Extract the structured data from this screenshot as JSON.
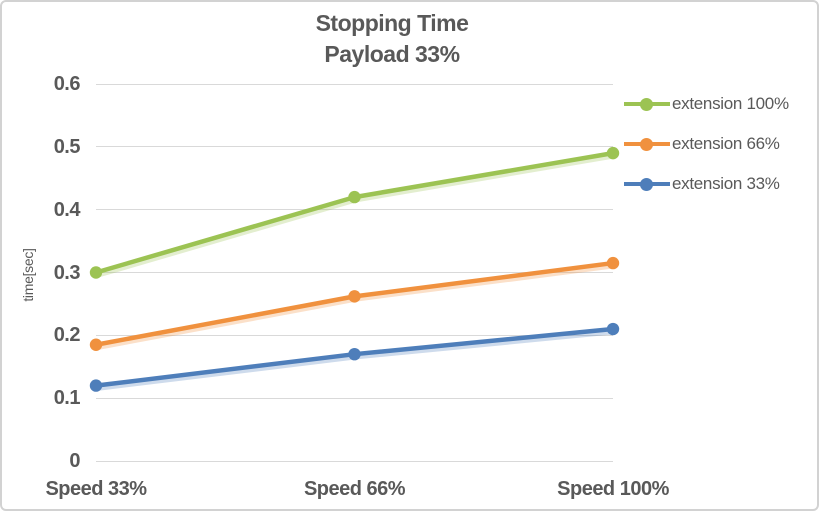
{
  "frame": {
    "background": "#ffffff",
    "border_color": "#d2d2d2",
    "text_color": "#595959",
    "grid_color": "#d9d9d9"
  },
  "chart_data": {
    "type": "line",
    "title": "Stopping Time",
    "subtitle": "Payload 33%",
    "xlabel": "",
    "ylabel": "time[sec]",
    "categories": [
      "Speed 33%",
      "Speed 66%",
      "Speed 100%"
    ],
    "series": [
      {
        "name": "extension 100%",
        "color": "#9cc353",
        "values": [
          0.3,
          0.42,
          0.49
        ]
      },
      {
        "name": "extension 66%",
        "color": "#f0913e",
        "values": [
          0.185,
          0.262,
          0.315
        ]
      },
      {
        "name": "extension 33%",
        "color": "#4e7eba",
        "values": [
          0.12,
          0.17,
          0.21
        ]
      }
    ],
    "ylim": [
      0,
      0.6
    ],
    "yticks": [
      0,
      0.1,
      0.2,
      0.3,
      0.4,
      0.5,
      0.6
    ],
    "ytick_labels": [
      "0",
      "0.1",
      "0.2",
      "0.3",
      "0.4",
      "0.5",
      "0.6"
    ],
    "grid": "horizontal",
    "legend_position": "right",
    "marker": "circle"
  }
}
